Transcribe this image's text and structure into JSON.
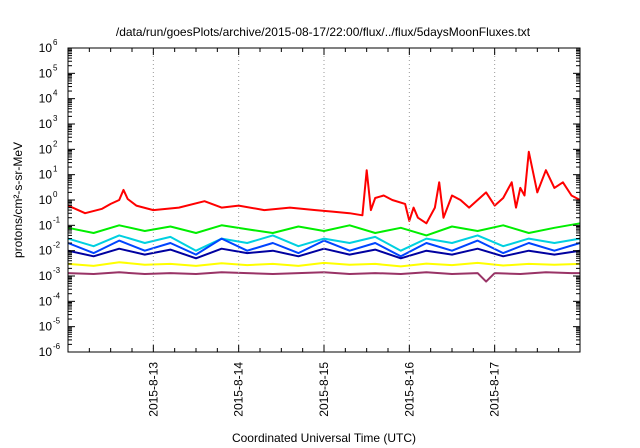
{
  "chart_data": {
    "type": "line",
    "title": "/data/run/goesPlots/archive/2015-08-17/22:00/flux/../flux/5daysMoonFluxes.txt",
    "xlabel": "Coordinated Universal Time (UTC)",
    "ylabel": "protons/cm²-s-sr-MeV",
    "y_scale": "log",
    "ylim_exponents": [
      -6,
      6
    ],
    "y_tick_base": "10",
    "xlim": [
      0.0,
      6.0
    ],
    "x_ticks": [
      {
        "x": 1.0,
        "label": "2015-8-13"
      },
      {
        "x": 2.0,
        "label": "2015-8-14"
      },
      {
        "x": 3.0,
        "label": "2015-8-15"
      },
      {
        "x": 4.0,
        "label": "2015-8-16"
      },
      {
        "x": 5.0,
        "label": "2015-8-17"
      }
    ],
    "x_note": "x = days after 2015-08-12 00:00 UTC",
    "grid": "vertical dotted at ticks",
    "legend": "none",
    "series": [
      {
        "color": "#ff0000",
        "x": [
          0.0,
          0.2,
          0.4,
          0.5,
          0.6,
          0.65,
          0.7,
          0.8,
          1.0,
          1.3,
          1.6,
          1.8,
          2.0,
          2.3,
          2.6,
          2.9,
          3.1,
          3.3,
          3.45,
          3.5,
          3.55,
          3.6,
          3.7,
          3.8,
          3.95,
          4.0,
          4.05,
          4.1,
          4.2,
          4.3,
          4.35,
          4.4,
          4.5,
          4.6,
          4.7,
          4.8,
          4.9,
          5.0,
          5.1,
          5.2,
          5.25,
          5.3,
          5.35,
          5.4,
          5.5,
          5.6,
          5.7,
          5.8,
          5.9,
          6.0
        ],
        "values": [
          0.6,
          0.3,
          0.45,
          0.7,
          1.0,
          2.5,
          1.1,
          0.6,
          0.4,
          0.5,
          0.9,
          0.5,
          0.6,
          0.4,
          0.5,
          0.4,
          0.35,
          0.3,
          0.25,
          15,
          0.4,
          1.2,
          1.5,
          1.0,
          0.7,
          0.15,
          0.5,
          0.2,
          0.12,
          0.5,
          5,
          0.2,
          1.5,
          1.0,
          0.5,
          1.0,
          2,
          0.6,
          1.2,
          5,
          0.5,
          3,
          1.5,
          80,
          2,
          15,
          3,
          5,
          1.5,
          1.0
        ]
      },
      {
        "color": "#00ee00",
        "x": [
          0.0,
          0.3,
          0.6,
          0.9,
          1.2,
          1.5,
          1.8,
          2.1,
          2.4,
          2.7,
          3.0,
          3.3,
          3.6,
          3.9,
          4.2,
          4.5,
          4.8,
          5.1,
          5.4,
          5.7,
          6.0
        ],
        "values": [
          0.08,
          0.05,
          0.1,
          0.06,
          0.09,
          0.05,
          0.1,
          0.07,
          0.05,
          0.09,
          0.06,
          0.1,
          0.05,
          0.08,
          0.04,
          0.09,
          0.06,
          0.1,
          0.05,
          0.08,
          0.12
        ]
      },
      {
        "color": "#00d0e0",
        "x": [
          0.0,
          0.3,
          0.6,
          0.9,
          1.2,
          1.5,
          1.8,
          2.1,
          2.4,
          2.7,
          3.0,
          3.3,
          3.6,
          3.9,
          4.2,
          4.5,
          4.8,
          5.1,
          5.4,
          5.7,
          6.0
        ],
        "values": [
          0.03,
          0.015,
          0.04,
          0.02,
          0.035,
          0.01,
          0.03,
          0.02,
          0.04,
          0.015,
          0.03,
          0.02,
          0.035,
          0.01,
          0.03,
          0.02,
          0.04,
          0.015,
          0.03,
          0.02,
          0.03
        ]
      },
      {
        "color": "#0044ff",
        "x": [
          0.0,
          0.3,
          0.6,
          0.9,
          1.2,
          1.5,
          1.8,
          2.1,
          2.4,
          2.7,
          3.0,
          3.3,
          3.6,
          3.9,
          4.2,
          4.5,
          4.8,
          5.1,
          5.4,
          5.7,
          6.0
        ],
        "values": [
          0.02,
          0.008,
          0.025,
          0.01,
          0.02,
          0.007,
          0.03,
          0.01,
          0.02,
          0.008,
          0.025,
          0.01,
          0.02,
          0.006,
          0.02,
          0.01,
          0.025,
          0.008,
          0.02,
          0.01,
          0.02
        ]
      },
      {
        "color": "#0000a0",
        "x": [
          0.0,
          0.3,
          0.6,
          0.9,
          1.2,
          1.5,
          1.8,
          2.1,
          2.4,
          2.7,
          3.0,
          3.3,
          3.6,
          3.9,
          4.2,
          4.5,
          4.8,
          5.1,
          5.4,
          5.7,
          6.0
        ],
        "values": [
          0.01,
          0.006,
          0.012,
          0.007,
          0.011,
          0.005,
          0.012,
          0.008,
          0.01,
          0.006,
          0.012,
          0.007,
          0.011,
          0.005,
          0.01,
          0.007,
          0.012,
          0.006,
          0.01,
          0.007,
          0.01
        ]
      },
      {
        "color": "#ffff00",
        "x": [
          0.0,
          0.3,
          0.6,
          0.9,
          1.2,
          1.5,
          1.8,
          2.1,
          2.4,
          2.7,
          3.0,
          3.3,
          3.6,
          3.9,
          4.2,
          4.5,
          4.8,
          5.1,
          5.4,
          5.7,
          6.0
        ],
        "values": [
          0.003,
          0.0025,
          0.0035,
          0.0028,
          0.003,
          0.0025,
          0.0032,
          0.0027,
          0.003,
          0.0025,
          0.0033,
          0.0028,
          0.003,
          0.0024,
          0.0031,
          0.0027,
          0.0033,
          0.0026,
          0.003,
          0.0028,
          0.003
        ]
      },
      {
        "color": "#993366",
        "x": [
          0.0,
          0.3,
          0.6,
          0.9,
          1.2,
          1.5,
          1.8,
          2.1,
          2.4,
          2.7,
          3.0,
          3.3,
          3.6,
          3.9,
          4.2,
          4.5,
          4.8,
          4.9,
          5.0,
          5.3,
          5.6,
          5.9,
          6.0
        ],
        "values": [
          0.0013,
          0.0012,
          0.0014,
          0.0012,
          0.0013,
          0.0012,
          0.0014,
          0.0013,
          0.0012,
          0.0013,
          0.0014,
          0.0012,
          0.0013,
          0.0012,
          0.0014,
          0.0012,
          0.0013,
          0.0006,
          0.0013,
          0.0012,
          0.0014,
          0.0013,
          0.0013
        ]
      }
    ]
  }
}
